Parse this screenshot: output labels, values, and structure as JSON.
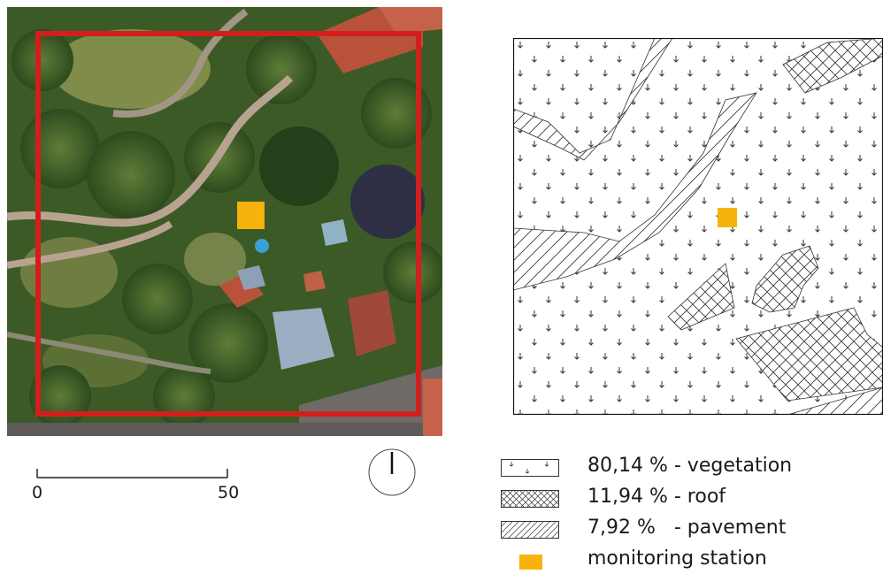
{
  "aerial_photo": {
    "label": "aerial-photo-of-site",
    "colors": {
      "vegetation_dark": "#2a4a1c",
      "vegetation": "#4f6e32",
      "vegetation_light": "#7d8a46",
      "path": "#b8a391",
      "road": "#6e6a68",
      "roof_red": "#b8533a",
      "roof_grey": "#9aaec4",
      "boundary": "#d41e1e"
    }
  },
  "landuse_map": {
    "colors": {
      "hatch": "#333333",
      "background": "#ffffff"
    }
  },
  "monitoring_station": {
    "color": "#f8b20c"
  },
  "scale_bar": {
    "start_label": "0",
    "end_label": "50"
  },
  "north_arrow": {
    "icon": "north-arrow-icon"
  },
  "legend": {
    "items": [
      {
        "symbol": "vegetation-pattern",
        "percent": "80,14 %",
        "label": "80,14 % - vegetation"
      },
      {
        "symbol": "roof-crosshatch-pattern",
        "percent": "11,94 %",
        "label": "11,94 % - roof"
      },
      {
        "symbol": "pavement-diagonal-pattern",
        "percent": "7,92 %",
        "label": "7,92 %   - pavement"
      },
      {
        "symbol": "monitoring-station-square",
        "label": "monitoring station"
      }
    ]
  }
}
